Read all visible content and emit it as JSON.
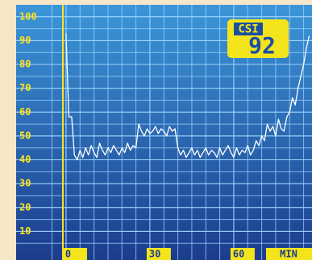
{
  "chart_data": {
    "type": "line",
    "xlabel": "MIN",
    "badge_label": "CSI",
    "current_value": 92,
    "x": [
      0,
      1,
      2,
      3,
      4,
      5,
      6,
      7,
      8,
      9,
      10,
      11,
      12,
      13,
      14,
      15,
      16,
      17,
      18,
      19,
      20,
      21,
      22,
      23,
      24,
      25,
      26,
      27,
      28,
      29,
      30,
      31,
      32,
      33,
      34,
      35,
      36,
      37,
      38,
      39,
      40,
      41,
      42,
      43,
      44,
      45,
      46,
      47,
      48,
      49,
      50,
      51,
      52,
      53,
      54,
      55,
      56,
      57,
      58,
      59,
      60,
      61,
      62,
      63,
      64,
      65,
      66,
      67,
      68,
      69,
      70,
      71,
      72,
      73,
      74,
      75,
      76,
      77,
      78,
      79,
      80,
      81,
      82,
      83,
      84,
      85,
      86,
      87
    ],
    "values": [
      93,
      58,
      58,
      42,
      40,
      44,
      41,
      45,
      42,
      46,
      43,
      41,
      47,
      44,
      42,
      45,
      43,
      46,
      44,
      42,
      45,
      43,
      47,
      44,
      46,
      45,
      55,
      52,
      50,
      53,
      51,
      52,
      54,
      51,
      53,
      52,
      50,
      54,
      52,
      53,
      45,
      42,
      44,
      41,
      43,
      45,
      42,
      44,
      41,
      43,
      45,
      42,
      44,
      43,
      41,
      45,
      42,
      44,
      46,
      43,
      41,
      45,
      42,
      44,
      43,
      46,
      42,
      44,
      48,
      46,
      50,
      48,
      55,
      52,
      54,
      50,
      57,
      53,
      52,
      58,
      60,
      66,
      63,
      70,
      75,
      80,
      87,
      92
    ],
    "color": "#ffffff",
    "xlim": [
      -2,
      88
    ],
    "xticks": [
      0,
      30,
      60
    ],
    "ylim": [
      0,
      105
    ],
    "yticks": [
      10,
      20,
      30,
      40,
      50,
      60,
      70,
      80,
      90,
      100
    ],
    "grid": true
  }
}
